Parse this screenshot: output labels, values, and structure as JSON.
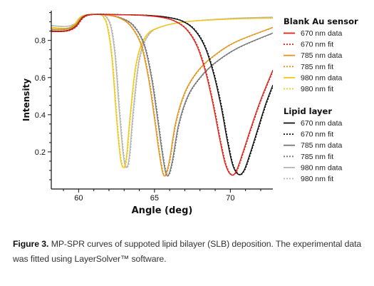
{
  "chart_data": {
    "type": "line",
    "xlabel": "Angle (deg)",
    "ylabel": "Intensity",
    "xlim": [
      58.2,
      72.8
    ],
    "ylim": [
      0,
      0.96
    ],
    "xticks": [
      60,
      65,
      70
    ],
    "yticks": [
      0.2,
      0.4,
      0.6,
      0.8
    ],
    "legend_groups": [
      {
        "title": "Blank Au sensor",
        "entries": [
          {
            "name": "670 nm data",
            "color": "#e2231a",
            "dash": "solid"
          },
          {
            "name": "670 nm fit",
            "color": "#e2231a",
            "dash": "dotted"
          },
          {
            "name": "785 nm data",
            "color": "#e3941c",
            "dash": "solid"
          },
          {
            "name": "785 nm fit",
            "color": "#e3941c",
            "dash": "dotted"
          },
          {
            "name": "980 nm data",
            "color": "#f2c81c",
            "dash": "solid"
          },
          {
            "name": "980 nm fit",
            "color": "#f2c81c",
            "dash": "dotted"
          }
        ]
      },
      {
        "title": "Lipid layer",
        "entries": [
          {
            "name": "670 nm data",
            "color": "#111111",
            "dash": "solid"
          },
          {
            "name": "670 nm fit",
            "color": "#111111",
            "dash": "dotted"
          },
          {
            "name": "785 nm data",
            "color": "#777777",
            "dash": "solid"
          },
          {
            "name": "785 nm fit",
            "color": "#777777",
            "dash": "dotted"
          },
          {
            "name": "980 nm data",
            "color": "#b5b5b5",
            "dash": "solid"
          },
          {
            "name": "980 nm fit",
            "color": "#b5b5b5",
            "dash": "dotted"
          }
        ]
      }
    ],
    "series": [
      {
        "color": "#b5b5b5",
        "dash": "solid",
        "points": [
          [
            58.2,
            0.88
          ],
          [
            59.2,
            0.875
          ],
          [
            59.8,
            0.893
          ],
          [
            60.2,
            0.93
          ],
          [
            60.8,
            0.94
          ],
          [
            61.3,
            0.94
          ],
          [
            61.7,
            0.935
          ],
          [
            62.1,
            0.88
          ],
          [
            62.4,
            0.72
          ],
          [
            62.7,
            0.4
          ],
          [
            62.95,
            0.18
          ],
          [
            63.15,
            0.115
          ],
          [
            63.35,
            0.18
          ],
          [
            63.6,
            0.42
          ],
          [
            64.0,
            0.7
          ],
          [
            64.6,
            0.83
          ],
          [
            65.5,
            0.875
          ],
          [
            67.0,
            0.9
          ],
          [
            70.0,
            0.918
          ],
          [
            72.8,
            0.925
          ]
        ]
      },
      {
        "color": "#b5b5b5",
        "dash": "dotted",
        "points": [
          [
            58.2,
            0.88
          ],
          [
            59.2,
            0.875
          ],
          [
            59.8,
            0.893
          ],
          [
            60.2,
            0.93
          ],
          [
            60.8,
            0.94
          ],
          [
            61.3,
            0.94
          ],
          [
            61.7,
            0.935
          ],
          [
            62.1,
            0.88
          ],
          [
            62.4,
            0.72
          ],
          [
            62.7,
            0.4
          ],
          [
            62.95,
            0.18
          ],
          [
            63.15,
            0.115
          ],
          [
            63.35,
            0.18
          ],
          [
            63.6,
            0.42
          ],
          [
            64.0,
            0.7
          ],
          [
            64.6,
            0.83
          ],
          [
            65.5,
            0.875
          ],
          [
            67.0,
            0.9
          ],
          [
            70.0,
            0.918
          ],
          [
            72.8,
            0.925
          ]
        ]
      },
      {
        "color": "#f2c81c",
        "dash": "solid",
        "points": [
          [
            58.2,
            0.87
          ],
          [
            59.2,
            0.865
          ],
          [
            59.7,
            0.885
          ],
          [
            60.1,
            0.925
          ],
          [
            60.6,
            0.938
          ],
          [
            61.2,
            0.94
          ],
          [
            61.6,
            0.93
          ],
          [
            61.9,
            0.87
          ],
          [
            62.2,
            0.7
          ],
          [
            62.5,
            0.38
          ],
          [
            62.75,
            0.17
          ],
          [
            62.95,
            0.115
          ],
          [
            63.15,
            0.17
          ],
          [
            63.4,
            0.4
          ],
          [
            63.8,
            0.68
          ],
          [
            64.4,
            0.82
          ],
          [
            65.3,
            0.87
          ],
          [
            67.0,
            0.9
          ],
          [
            70.0,
            0.915
          ],
          [
            72.8,
            0.92
          ]
        ]
      },
      {
        "color": "#f2c81c",
        "dash": "dotted",
        "points": [
          [
            58.2,
            0.87
          ],
          [
            59.2,
            0.865
          ],
          [
            59.7,
            0.885
          ],
          [
            60.1,
            0.925
          ],
          [
            60.6,
            0.938
          ],
          [
            61.2,
            0.94
          ],
          [
            61.6,
            0.93
          ],
          [
            61.9,
            0.87
          ],
          [
            62.2,
            0.7
          ],
          [
            62.5,
            0.38
          ],
          [
            62.75,
            0.17
          ],
          [
            62.95,
            0.115
          ],
          [
            63.15,
            0.17
          ],
          [
            63.4,
            0.4
          ],
          [
            63.8,
            0.68
          ],
          [
            64.4,
            0.82
          ],
          [
            65.3,
            0.87
          ],
          [
            67.0,
            0.9
          ],
          [
            70.0,
            0.915
          ],
          [
            72.8,
            0.92
          ]
        ]
      },
      {
        "color": "#777777",
        "dash": "solid",
        "points": [
          [
            58.2,
            0.86
          ],
          [
            59.2,
            0.862
          ],
          [
            59.8,
            0.885
          ],
          [
            60.3,
            0.93
          ],
          [
            61.0,
            0.94
          ],
          [
            62.0,
            0.935
          ],
          [
            62.8,
            0.92
          ],
          [
            63.6,
            0.88
          ],
          [
            64.3,
            0.78
          ],
          [
            64.8,
            0.6
          ],
          [
            65.2,
            0.38
          ],
          [
            65.5,
            0.2
          ],
          [
            65.75,
            0.085
          ],
          [
            65.95,
            0.08
          ],
          [
            66.2,
            0.16
          ],
          [
            66.6,
            0.35
          ],
          [
            67.2,
            0.5
          ],
          [
            68.0,
            0.6
          ],
          [
            69.0,
            0.68
          ],
          [
            70.5,
            0.76
          ],
          [
            72.8,
            0.84
          ]
        ]
      },
      {
        "color": "#777777",
        "dash": "dotted",
        "points": [
          [
            58.2,
            0.86
          ],
          [
            59.2,
            0.862
          ],
          [
            59.8,
            0.885
          ],
          [
            60.3,
            0.93
          ],
          [
            61.0,
            0.94
          ],
          [
            62.0,
            0.935
          ],
          [
            62.8,
            0.92
          ],
          [
            63.6,
            0.88
          ],
          [
            64.3,
            0.78
          ],
          [
            64.8,
            0.6
          ],
          [
            65.2,
            0.38
          ],
          [
            65.5,
            0.2
          ],
          [
            65.75,
            0.085
          ],
          [
            65.95,
            0.08
          ],
          [
            66.2,
            0.16
          ],
          [
            66.6,
            0.35
          ],
          [
            67.2,
            0.5
          ],
          [
            68.0,
            0.6
          ],
          [
            69.0,
            0.68
          ],
          [
            70.5,
            0.76
          ],
          [
            72.8,
            0.84
          ]
        ]
      },
      {
        "color": "#e3941c",
        "dash": "solid",
        "points": [
          [
            58.2,
            0.858
          ],
          [
            59.2,
            0.86
          ],
          [
            59.8,
            0.883
          ],
          [
            60.3,
            0.928
          ],
          [
            61.0,
            0.94
          ],
          [
            62.0,
            0.935
          ],
          [
            62.7,
            0.92
          ],
          [
            63.4,
            0.88
          ],
          [
            64.1,
            0.78
          ],
          [
            64.6,
            0.6
          ],
          [
            65.0,
            0.38
          ],
          [
            65.3,
            0.2
          ],
          [
            65.55,
            0.085
          ],
          [
            65.75,
            0.08
          ],
          [
            66.0,
            0.16
          ],
          [
            66.4,
            0.36
          ],
          [
            67.0,
            0.52
          ],
          [
            67.8,
            0.63
          ],
          [
            68.8,
            0.71
          ],
          [
            70.3,
            0.79
          ],
          [
            72.8,
            0.87
          ]
        ]
      },
      {
        "color": "#e3941c",
        "dash": "dotted",
        "points": [
          [
            58.2,
            0.858
          ],
          [
            59.2,
            0.86
          ],
          [
            59.8,
            0.883
          ],
          [
            60.3,
            0.928
          ],
          [
            61.0,
            0.94
          ],
          [
            62.0,
            0.935
          ],
          [
            62.7,
            0.92
          ],
          [
            63.4,
            0.88
          ],
          [
            64.1,
            0.78
          ],
          [
            64.6,
            0.6
          ],
          [
            65.0,
            0.38
          ],
          [
            65.3,
            0.2
          ],
          [
            65.55,
            0.085
          ],
          [
            65.75,
            0.08
          ],
          [
            66.0,
            0.16
          ],
          [
            66.4,
            0.36
          ],
          [
            67.0,
            0.52
          ],
          [
            67.8,
            0.63
          ],
          [
            68.8,
            0.71
          ],
          [
            70.3,
            0.79
          ],
          [
            72.8,
            0.87
          ]
        ]
      },
      {
        "color": "#111111",
        "dash": "solid",
        "points": [
          [
            58.2,
            0.85
          ],
          [
            59.2,
            0.852
          ],
          [
            59.8,
            0.875
          ],
          [
            60.3,
            0.925
          ],
          [
            61.0,
            0.94
          ],
          [
            63.0,
            0.938
          ],
          [
            64.5,
            0.935
          ],
          [
            65.8,
            0.925
          ],
          [
            66.8,
            0.905
          ],
          [
            67.6,
            0.86
          ],
          [
            68.3,
            0.77
          ],
          [
            68.9,
            0.62
          ],
          [
            69.4,
            0.44
          ],
          [
            69.8,
            0.26
          ],
          [
            70.15,
            0.13
          ],
          [
            70.55,
            0.078
          ],
          [
            70.9,
            0.1
          ],
          [
            71.3,
            0.19
          ],
          [
            71.8,
            0.32
          ],
          [
            72.3,
            0.45
          ],
          [
            72.8,
            0.56
          ]
        ]
      },
      {
        "color": "#111111",
        "dash": "dotted",
        "points": [
          [
            58.2,
            0.85
          ],
          [
            59.2,
            0.852
          ],
          [
            59.8,
            0.875
          ],
          [
            60.3,
            0.925
          ],
          [
            61.0,
            0.94
          ],
          [
            63.0,
            0.938
          ],
          [
            64.5,
            0.935
          ],
          [
            65.8,
            0.925
          ],
          [
            66.8,
            0.905
          ],
          [
            67.6,
            0.86
          ],
          [
            68.3,
            0.77
          ],
          [
            68.9,
            0.62
          ],
          [
            69.4,
            0.44
          ],
          [
            69.8,
            0.26
          ],
          [
            70.15,
            0.13
          ],
          [
            70.55,
            0.078
          ],
          [
            70.9,
            0.1
          ],
          [
            71.3,
            0.19
          ],
          [
            71.8,
            0.32
          ],
          [
            72.3,
            0.45
          ],
          [
            72.8,
            0.56
          ]
        ]
      },
      {
        "color": "#e2231a",
        "dash": "solid",
        "points": [
          [
            58.2,
            0.848
          ],
          [
            59.2,
            0.85
          ],
          [
            59.8,
            0.873
          ],
          [
            60.3,
            0.923
          ],
          [
            61.0,
            0.94
          ],
          [
            62.8,
            0.938
          ],
          [
            64.2,
            0.935
          ],
          [
            65.4,
            0.925
          ],
          [
            66.3,
            0.905
          ],
          [
            67.1,
            0.86
          ],
          [
            67.8,
            0.77
          ],
          [
            68.4,
            0.62
          ],
          [
            68.9,
            0.44
          ],
          [
            69.3,
            0.27
          ],
          [
            69.65,
            0.14
          ],
          [
            70.0,
            0.08
          ],
          [
            70.35,
            0.09
          ],
          [
            70.8,
            0.19
          ],
          [
            71.4,
            0.34
          ],
          [
            72.0,
            0.48
          ],
          [
            72.8,
            0.64
          ]
        ]
      },
      {
        "color": "#e2231a",
        "dash": "dotted",
        "points": [
          [
            58.2,
            0.848
          ],
          [
            59.2,
            0.85
          ],
          [
            59.8,
            0.873
          ],
          [
            60.3,
            0.923
          ],
          [
            61.0,
            0.94
          ],
          [
            62.8,
            0.938
          ],
          [
            64.2,
            0.935
          ],
          [
            65.4,
            0.925
          ],
          [
            66.3,
            0.905
          ],
          [
            67.1,
            0.86
          ],
          [
            67.8,
            0.77
          ],
          [
            68.4,
            0.62
          ],
          [
            68.9,
            0.44
          ],
          [
            69.3,
            0.27
          ],
          [
            69.65,
            0.14
          ],
          [
            70.0,
            0.08
          ],
          [
            70.35,
            0.09
          ],
          [
            70.8,
            0.19
          ],
          [
            71.4,
            0.34
          ],
          [
            72.0,
            0.48
          ],
          [
            72.8,
            0.64
          ]
        ]
      }
    ]
  },
  "caption": {
    "label": "Figure 3.",
    "text": "MP-SPR curves of suppoted lipid bilayer (SLB) deposition. The experimental data was fitted using LayerSolver™ software."
  }
}
